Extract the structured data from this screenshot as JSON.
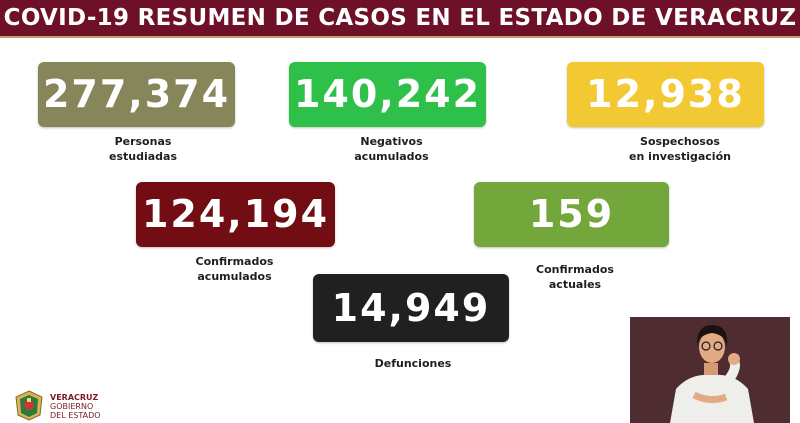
{
  "header": {
    "title": "COVID-19 RESUMEN DE CASOS EN EL ESTADO DE VERACRUZ"
  },
  "stats": {
    "estudiadas": {
      "value": "277,374",
      "label_line1": "Personas",
      "label_line2": "estudiadas",
      "color": "#87855a"
    },
    "negativos": {
      "value": "140,242",
      "label_line1": "Negativos",
      "label_line2": "acumulados",
      "color": "#2ec049"
    },
    "sospechosos": {
      "value": "12,938",
      "label_line1": "Sospechosos",
      "label_line2": "en investigación",
      "color": "#f2c933"
    },
    "confirmados_acumulados": {
      "value": "124,194",
      "label_line1": "Confirmados",
      "label_line2": "acumulados",
      "color": "#720d14"
    },
    "confirmados_actuales": {
      "value": "159",
      "label_line1": "Confirmados",
      "label_line2": "actuales",
      "color": "#74a73b"
    },
    "defunciones": {
      "value": "14,949",
      "label_line1": "Defunciones",
      "color": "#202020"
    }
  },
  "footer": {
    "line1": "VERACRUZ",
    "line2": "GOBIERNO",
    "line3": "DEL ESTADO"
  },
  "icons": {
    "logo": "veracruz-state-seal-icon"
  }
}
